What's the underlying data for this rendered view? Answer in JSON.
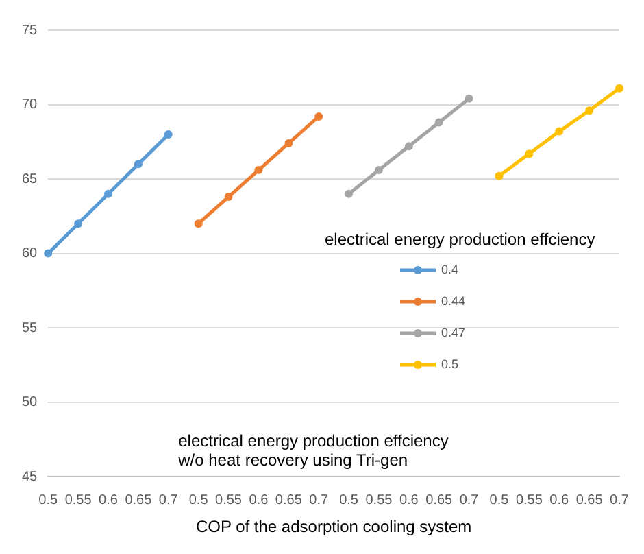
{
  "chart_data": {
    "type": "line",
    "xlabel": "COP of the adsorption cooling system",
    "legend_title": "electrical energy production effciency",
    "categories": [
      "0.5",
      "0.55",
      "0.6",
      "0.65",
      "0.7",
      "0.5",
      "0.55",
      "0.6",
      "0.65",
      "0.7",
      "0.5",
      "0.55",
      "0.6",
      "0.65",
      "0.7",
      "0.5",
      "0.55",
      "0.6",
      "0.65",
      "0.7"
    ],
    "series": [
      {
        "name": "0.4",
        "color": "#5b9bd5",
        "values": [
          60,
          62,
          64,
          66,
          68,
          null,
          null,
          null,
          null,
          null,
          null,
          null,
          null,
          null,
          null,
          null,
          null,
          null,
          null,
          null
        ]
      },
      {
        "name": "0.44",
        "color": "#ed7d31",
        "values": [
          null,
          null,
          null,
          null,
          null,
          62,
          63.8,
          65.6,
          67.4,
          69.2,
          null,
          null,
          null,
          null,
          null,
          null,
          null,
          null,
          null,
          null
        ]
      },
      {
        "name": "0.47",
        "color": "#a5a5a5",
        "values": [
          null,
          null,
          null,
          null,
          null,
          null,
          null,
          null,
          null,
          null,
          64,
          65.6,
          67.2,
          68.8,
          70.4,
          null,
          null,
          null,
          null,
          null
        ]
      },
      {
        "name": "0.5",
        "color": "#ffc000",
        "values": [
          null,
          null,
          null,
          null,
          null,
          null,
          null,
          null,
          null,
          null,
          null,
          null,
          null,
          null,
          null,
          65.2,
          66.7,
          68.2,
          69.6,
          71.1
        ]
      }
    ],
    "ylim": [
      45,
      75
    ],
    "yticks": [
      45,
      50,
      55,
      60,
      65,
      70,
      75
    ],
    "grid": "y",
    "legend": "right",
    "marker": "circle",
    "line_style": "solid",
    "annotations": [
      "electrical energy production effciency\nw/o heat recovery using Tri-gen"
    ]
  }
}
